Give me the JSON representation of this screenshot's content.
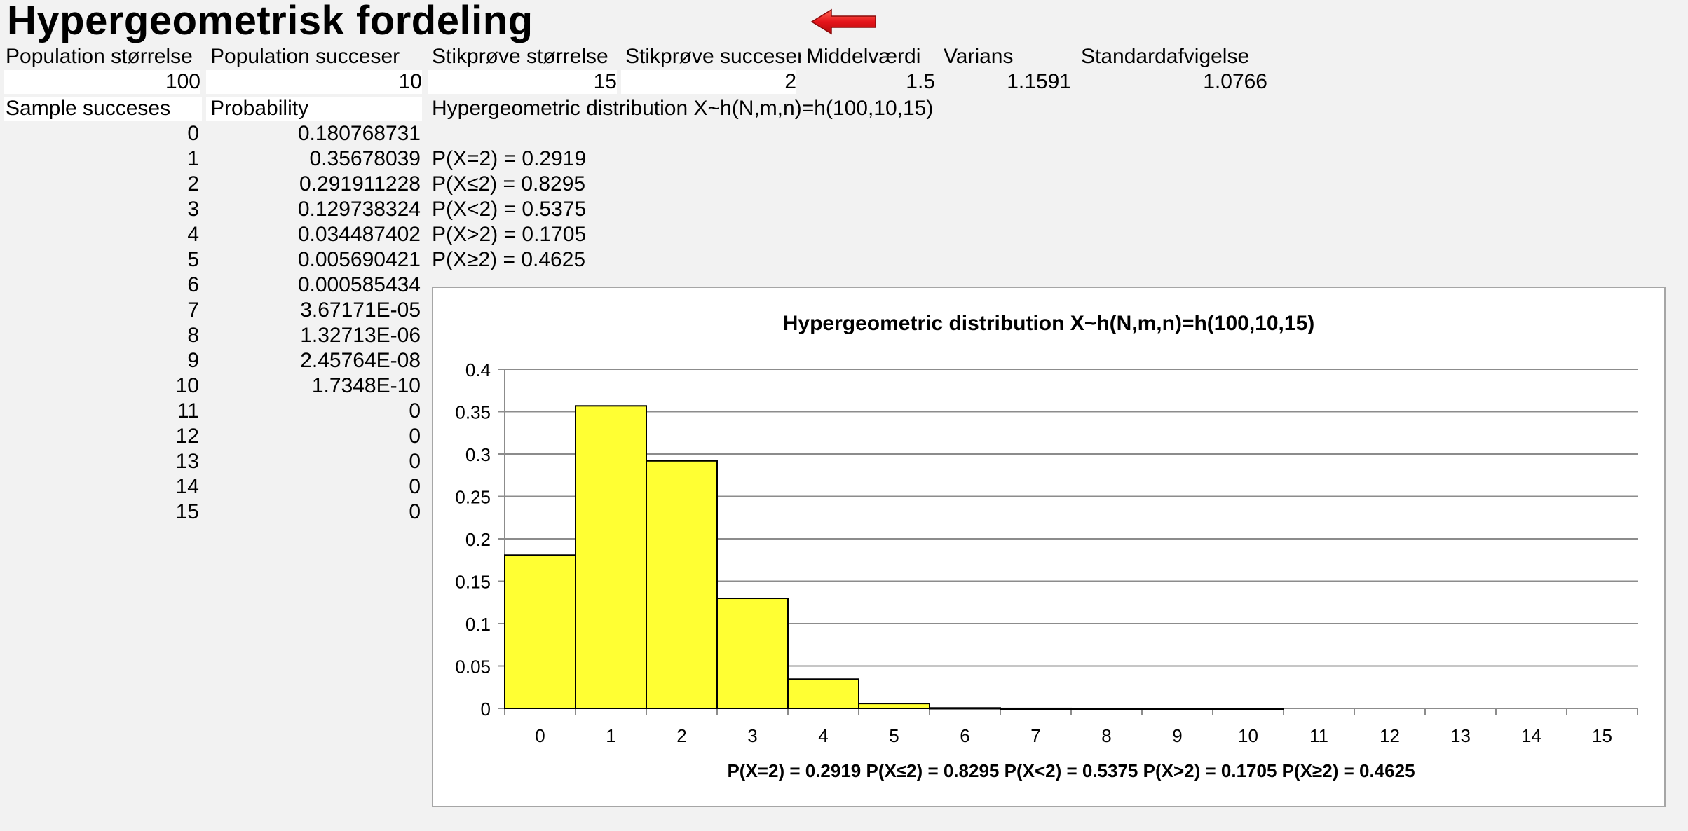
{
  "sheet": {
    "title": "Hypergeometrisk fordeling",
    "headers": [
      "Population størrelse",
      "Population succeser",
      "Stikprøve størrelse",
      "Stikprøve succeser",
      "Middelværdi",
      "Varians",
      "Standardafvigelse"
    ],
    "values": [
      "100",
      "10",
      "15",
      "2",
      "1.5",
      "1.1591",
      "1.0766"
    ],
    "table_header_x": "Sample succeses",
    "table_header_p": "Probability",
    "dist_label": "Hypergeometric distribution X~h(N,m,n)=h(100,10,15)",
    "table_rows": [
      {
        "x": "0",
        "p": "0.180768731"
      },
      {
        "x": "1",
        "p": "0.35678039"
      },
      {
        "x": "2",
        "p": "0.291911228"
      },
      {
        "x": "3",
        "p": "0.129738324"
      },
      {
        "x": "4",
        "p": "0.034487402"
      },
      {
        "x": "5",
        "p": "0.005690421"
      },
      {
        "x": "6",
        "p": "0.000585434"
      },
      {
        "x": "7",
        "p": "3.67171E-05"
      },
      {
        "x": "8",
        "p": "1.32713E-06"
      },
      {
        "x": "9",
        "p": "2.45764E-08"
      },
      {
        "x": "10",
        "p": "1.7348E-10"
      },
      {
        "x": "11",
        "p": "0"
      },
      {
        "x": "12",
        "p": "0"
      },
      {
        "x": "13",
        "p": "0"
      },
      {
        "x": "14",
        "p": "0"
      },
      {
        "x": "15",
        "p": "0"
      }
    ],
    "prob_lines": [
      "P(X=2) = 0.2919",
      "P(X≤2) = 0.8295",
      "P(X<2) = 0.5375",
      "P(X>2) = 0.1705",
      "P(X≥2) = 0.4625"
    ]
  },
  "chart_data": {
    "type": "bar",
    "title": "Hypergeometric distribution X~h(N,m,n)=h(100,10,15)",
    "xlabel": "P(X=2) = 0.2919  P(X≤2) = 0.8295  P(X<2) = 0.5375  P(X>2) = 0.1705  P(X≥2) = 0.4625",
    "ylabel": "",
    "categories": [
      "0",
      "1",
      "2",
      "3",
      "4",
      "5",
      "6",
      "7",
      "8",
      "9",
      "10",
      "11",
      "12",
      "13",
      "14",
      "15"
    ],
    "values": [
      0.180768731,
      0.35678039,
      0.291911228,
      0.129738324,
      0.034487402,
      0.005690421,
      0.000585434,
      3.67171e-05,
      1.32713e-06,
      2.45764e-08,
      1.7348e-10,
      0,
      0,
      0,
      0,
      0
    ],
    "ylim": [
      0,
      0.4
    ],
    "yticks": [
      "0",
      "0.05",
      "0.1",
      "0.15",
      "0.2",
      "0.25",
      "0.3",
      "0.35",
      "0.4"
    ],
    "grid": true,
    "legend": "none",
    "bar_color": "#ffff33"
  }
}
